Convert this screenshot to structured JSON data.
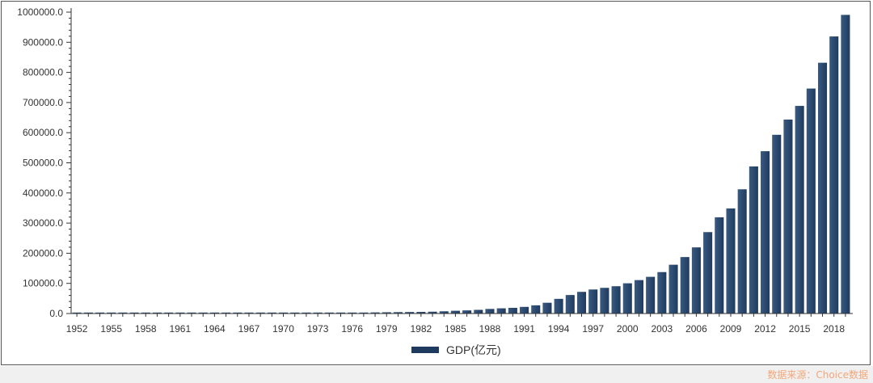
{
  "chart_data": {
    "type": "bar",
    "title": "",
    "xlabel": "",
    "ylabel": "",
    "ylim": [
      0,
      1000000
    ],
    "y_ticks": [
      "0.0",
      "100000.0",
      "200000.0",
      "300000.0",
      "400000.0",
      "500000.0",
      "600000.0",
      "700000.0",
      "800000.0",
      "900000.0",
      "1000000.0"
    ],
    "x_tick_labels": [
      "1952",
      "1955",
      "1958",
      "1961",
      "1964",
      "1967",
      "1970",
      "1973",
      "1976",
      "1979",
      "1982",
      "1985",
      "1988",
      "1991",
      "1994",
      "1997",
      "2000",
      "2003",
      "2006",
      "2009",
      "2012",
      "2015",
      "2018"
    ],
    "categories": [
      "1952",
      "1953",
      "1954",
      "1955",
      "1956",
      "1957",
      "1958",
      "1959",
      "1960",
      "1961",
      "1962",
      "1963",
      "1964",
      "1965",
      "1966",
      "1967",
      "1968",
      "1969",
      "1970",
      "1971",
      "1972",
      "1973",
      "1974",
      "1975",
      "1976",
      "1977",
      "1978",
      "1979",
      "1980",
      "1981",
      "1982",
      "1983",
      "1984",
      "1985",
      "1986",
      "1987",
      "1988",
      "1989",
      "1990",
      "1991",
      "1992",
      "1993",
      "1994",
      "1995",
      "1996",
      "1997",
      "1998",
      "1999",
      "2000",
      "2001",
      "2002",
      "2003",
      "2004",
      "2005",
      "2006",
      "2007",
      "2008",
      "2009",
      "2010",
      "2011",
      "2012",
      "2013",
      "2014",
      "2015",
      "2016",
      "2017",
      "2018",
      "2019"
    ],
    "series": [
      {
        "name": "GDP(亿元)",
        "color": "#1f3a5f",
        "values": [
          679,
          824,
          859,
          911,
          1030,
          1071,
          1312,
          1447,
          1470,
          1232,
          1162,
          1248,
          1469,
          1734,
          1889,
          1794,
          1745,
          1946,
          2279,
          2457,
          2552,
          2757,
          2790,
          2997,
          2944,
          3221,
          3679,
          4101,
          4588,
          4936,
          5373,
          6021,
          7279,
          9099,
          10376,
          12175,
          15180,
          17180,
          18873,
          22006,
          27195,
          35673,
          48638,
          61340,
          71814,
          79715,
          85196,
          90564,
          100280,
          110863,
          121717,
          137422,
          161840,
          187319,
          219439,
          270092,
          319245,
          348518,
          412119,
          487940,
          538580,
          592963,
          643563,
          688858,
          746395,
          832036,
          919281,
          990865
        ]
      }
    ],
    "grid": false,
    "legend_position": "bottom-center"
  },
  "legend": {
    "label": "GDP(亿元)"
  },
  "source_note": "数据来源：Choice数据"
}
